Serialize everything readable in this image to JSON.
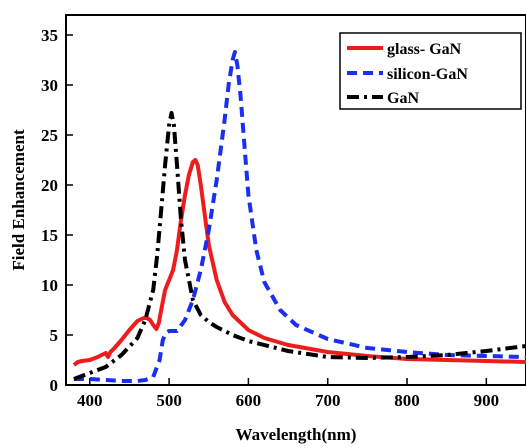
{
  "chart_data": {
    "type": "line",
    "title": "",
    "xlabel": "Wavelength(nm)",
    "ylabel": "Field Enhancement",
    "xlim": [
      370,
      950
    ],
    "ylim": [
      0,
      37
    ],
    "xticks": [
      400,
      500,
      600,
      700,
      800,
      900
    ],
    "yticks": [
      0,
      5,
      10,
      15,
      20,
      25,
      30,
      35
    ],
    "grid": false,
    "legend_position": "top-right",
    "series": [
      {
        "name": "glass- GaN",
        "color": "#ee1c1c",
        "dash": "solid",
        "x": [
          380,
          385,
          390,
          400,
          410,
          420,
          423,
          426,
          430,
          440,
          450,
          460,
          468,
          472,
          476,
          480,
          484,
          487,
          490,
          495,
          500,
          505,
          510,
          515,
          520,
          525,
          530,
          533,
          536,
          540,
          545,
          550,
          560,
          570,
          580,
          600,
          620,
          650,
          700,
          750,
          800,
          850,
          900,
          950
        ],
        "y": [
          2.0,
          2.3,
          2.4,
          2.5,
          2.8,
          3.2,
          2.8,
          3.3,
          3.6,
          4.5,
          5.5,
          6.4,
          6.7,
          6.7,
          6.5,
          6.0,
          5.6,
          6.2,
          7.5,
          9.5,
          10.5,
          11.5,
          13.5,
          16.5,
          19.0,
          21.0,
          22.3,
          22.5,
          22.0,
          20.0,
          17.0,
          14.0,
          10.5,
          8.3,
          7.0,
          5.5,
          4.7,
          4.0,
          3.3,
          2.9,
          2.6,
          2.5,
          2.4,
          2.3
        ]
      },
      {
        "name": "silicon-GaN",
        "color": "#1a2ff0",
        "dash": "dashed",
        "x": [
          380,
          400,
          420,
          440,
          460,
          470,
          480,
          488,
          492,
          496,
          500,
          510,
          520,
          530,
          540,
          550,
          560,
          570,
          575,
          580,
          583,
          586,
          590,
          595,
          600,
          610,
          620,
          640,
          660,
          700,
          750,
          800,
          850,
          900,
          950
        ],
        "y": [
          0.6,
          0.6,
          0.5,
          0.4,
          0.4,
          0.5,
          0.8,
          2.5,
          4.5,
          5.2,
          5.4,
          5.4,
          6.5,
          8.5,
          11.5,
          15.5,
          20.5,
          26.5,
          30.0,
          32.5,
          33.3,
          32.0,
          29.0,
          24.0,
          19.0,
          13.5,
          10.3,
          7.5,
          6.0,
          4.6,
          3.7,
          3.3,
          3.0,
          2.9,
          2.8
        ]
      },
      {
        "name": "GaN",
        "color": "#000000",
        "dash": "dash-dot",
        "x": [
          380,
          400,
          420,
          440,
          460,
          470,
          480,
          485,
          490,
          495,
          500,
          503,
          506,
          510,
          515,
          520,
          530,
          540,
          550,
          560,
          580,
          600,
          650,
          700,
          750,
          800,
          850,
          900,
          950
        ],
        "y": [
          0.6,
          1.2,
          1.8,
          3.0,
          4.7,
          6.5,
          9.5,
          13.0,
          17.5,
          22.0,
          26.0,
          27.2,
          26.0,
          22.0,
          16.5,
          12.5,
          8.5,
          7.0,
          6.3,
          5.8,
          5.0,
          4.4,
          3.4,
          2.8,
          2.7,
          2.8,
          3.0,
          3.4,
          3.9
        ]
      }
    ]
  }
}
